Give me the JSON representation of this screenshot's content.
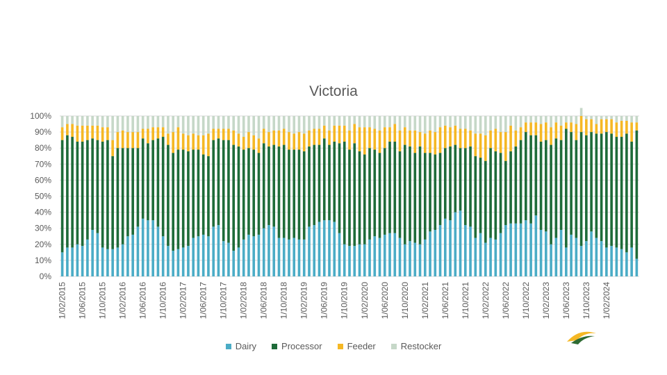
{
  "chart_data": {
    "type": "bar",
    "stacked": true,
    "title": "Victoria",
    "ylim": [
      0,
      100
    ],
    "y_ticks": [
      "0%",
      "10%",
      "20%",
      "30%",
      "40%",
      "50%",
      "60%",
      "70%",
      "80%",
      "90%",
      "100%"
    ],
    "x_tick_labels": [
      "1/02/2015",
      "1/06/2015",
      "1/10/2015",
      "1/02/2016",
      "1/06/2016",
      "1/10/2016",
      "1/02/2017",
      "1/06/2017",
      "1/10/2017",
      "1/02/2018",
      "1/06/2018",
      "1/10/2018",
      "1/02/2019",
      "1/06/2019",
      "1/10/2019",
      "1/02/2020",
      "1/06/2020",
      "1/10/2020",
      "1/02/2021",
      "1/06/2021",
      "1/10/2021",
      "1/02/2022",
      "1/06/2022",
      "1/10/2022",
      "1/02/2023",
      "1/06/2023",
      "1/10/2023",
      "1/02/2024"
    ],
    "x_start": "1/02/2015",
    "grid": true,
    "legend_position": "bottom",
    "series": [
      {
        "name": "Dairy",
        "color": "#4bacc6",
        "values": [
          15,
          18,
          18,
          20,
          19,
          23,
          29,
          27,
          18,
          17,
          17,
          18,
          20,
          25,
          26,
          31,
          36,
          35,
          35,
          31,
          25,
          19,
          16,
          17,
          18,
          19,
          24,
          25,
          26,
          25,
          31,
          32,
          22,
          21,
          16,
          18,
          23,
          26,
          25,
          26,
          30,
          32,
          31,
          24,
          24,
          23,
          24,
          23,
          23,
          31,
          32,
          34,
          35,
          35,
          34,
          27,
          20,
          19,
          19,
          20,
          20,
          23,
          25,
          24,
          26,
          27,
          27,
          24,
          20,
          22,
          21,
          20,
          23,
          28,
          29,
          32,
          36,
          35,
          40,
          41,
          32,
          31,
          24,
          27,
          21,
          24,
          23,
          27,
          32,
          33,
          33,
          33,
          35,
          33,
          38,
          29,
          28,
          20,
          24,
          29,
          18,
          26,
          24,
          19,
          22,
          28,
          24,
          22,
          18,
          19,
          18,
          17,
          15,
          18,
          11
        ]
      },
      {
        "name": "Processor",
        "color": "#1e6b39",
        "values": [
          70,
          70,
          69,
          64,
          65,
          62,
          57,
          58,
          66,
          68,
          58,
          62,
          60,
          55,
          54,
          49,
          50,
          48,
          50,
          55,
          62,
          63,
          61,
          62,
          61,
          59,
          55,
          54,
          50,
          50,
          54,
          54,
          63,
          64,
          66,
          63,
          56,
          54,
          54,
          51,
          53,
          49,
          51,
          57,
          58,
          56,
          55,
          56,
          55,
          50,
          50,
          48,
          51,
          47,
          50,
          56,
          64,
          60,
          64,
          58,
          56,
          57,
          54,
          53,
          54,
          57,
          57,
          54,
          62,
          59,
          56,
          61,
          54,
          49,
          47,
          45,
          44,
          46,
          42,
          39,
          48,
          50,
          51,
          47,
          51,
          56,
          55,
          50,
          40,
          45,
          48,
          52,
          55,
          55,
          50,
          55,
          57,
          62,
          62,
          56,
          74,
          64,
          61,
          71,
          66,
          62,
          65,
          67,
          72,
          70,
          69,
          70,
          74,
          66,
          80
        ]
      },
      {
        "name": "Feeder",
        "color": "#f5b825",
        "values": [
          8,
          7,
          8,
          10,
          10,
          9,
          8,
          9,
          9,
          8,
          10,
          10,
          11,
          10,
          10,
          10,
          6,
          9,
          8,
          7,
          6,
          7,
          13,
          14,
          10,
          10,
          10,
          9,
          12,
          14,
          7,
          6,
          7,
          7,
          9,
          8,
          8,
          10,
          9,
          9,
          9,
          9,
          9,
          10,
          10,
          11,
          10,
          11,
          11,
          10,
          10,
          10,
          8,
          9,
          10,
          11,
          10,
          12,
          12,
          15,
          17,
          13,
          13,
          14,
          13,
          9,
          11,
          13,
          11,
          10,
          14,
          9,
          12,
          14,
          14,
          16,
          14,
          12,
          12,
          12,
          12,
          10,
          14,
          15,
          16,
          11,
          14,
          13,
          18,
          16,
          10,
          8,
          6,
          8,
          8,
          11,
          11,
          11,
          10,
          9,
          4,
          6,
          10,
          10,
          10,
          8,
          6,
          9,
          8,
          9,
          9,
          10,
          8,
          12,
          5
        ]
      },
      {
        "name": "Restocker",
        "color": "#c6d8c8",
        "values": [
          7,
          5,
          5,
          6,
          6,
          6,
          6,
          6,
          7,
          7,
          15,
          10,
          9,
          10,
          10,
          10,
          8,
          8,
          7,
          7,
          7,
          11,
          10,
          7,
          11,
          12,
          11,
          12,
          12,
          11,
          8,
          8,
          8,
          8,
          9,
          11,
          13,
          10,
          12,
          14,
          8,
          10,
          9,
          9,
          8,
          10,
          11,
          10,
          11,
          9,
          8,
          8,
          6,
          9,
          6,
          6,
          6,
          9,
          5,
          7,
          7,
          7,
          8,
          9,
          7,
          7,
          5,
          9,
          7,
          9,
          9,
          10,
          11,
          9,
          10,
          7,
          6,
          7,
          6,
          8,
          8,
          9,
          11,
          11,
          12,
          9,
          8,
          10,
          10,
          6,
          9,
          7,
          4,
          4,
          4,
          5,
          4,
          7,
          4,
          6,
          4,
          4,
          5,
          5,
          2,
          2,
          5,
          2,
          2,
          2,
          4,
          3,
          3,
          4,
          4
        ]
      }
    ]
  }
}
